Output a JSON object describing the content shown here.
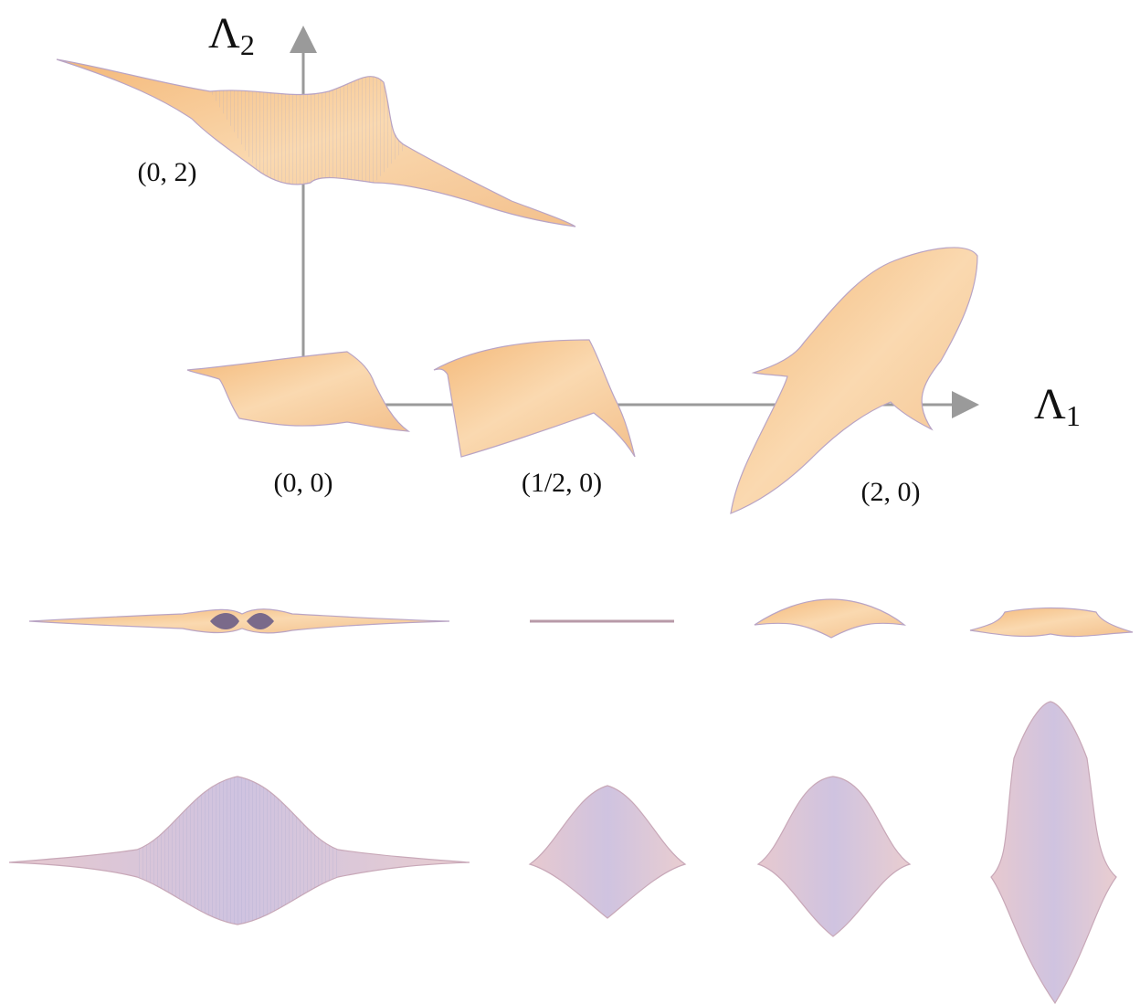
{
  "axes": {
    "vertical": {
      "symbol": "Λ",
      "subscript": "2"
    },
    "horizontal": {
      "symbol": "Λ",
      "subscript": "1"
    }
  },
  "points": [
    {
      "label": "(0, 2)"
    },
    {
      "label": "(0, 0)"
    },
    {
      "label": "(1/2, 0)"
    },
    {
      "label": "(2, 0)"
    }
  ]
}
